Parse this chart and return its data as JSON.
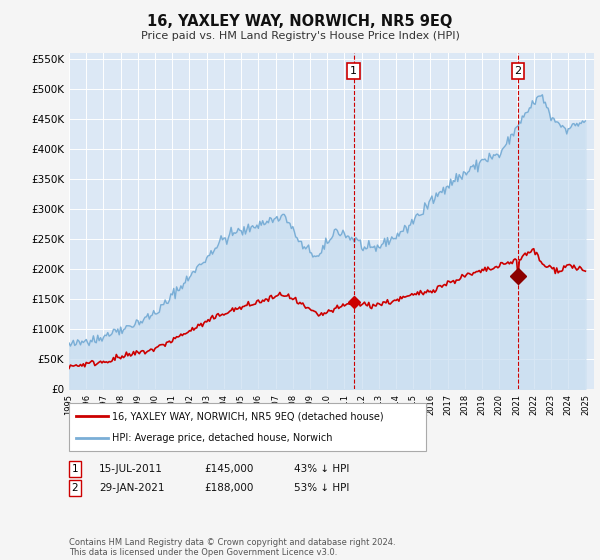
{
  "title": "16, YAXLEY WAY, NORWICH, NR5 9EQ",
  "subtitle": "Price paid vs. HM Land Registry's House Price Index (HPI)",
  "hpi_color": "#7aaed6",
  "hpi_fill_color": "#c8ddf0",
  "price_color": "#cc0000",
  "fig_bg_color": "#f5f5f5",
  "plot_bg_color": "#dce8f5",
  "ylim": [
    0,
    560000
  ],
  "yticks": [
    0,
    50000,
    100000,
    150000,
    200000,
    250000,
    300000,
    350000,
    400000,
    450000,
    500000,
    550000
  ],
  "xlim_left": 1995.0,
  "xlim_right": 2025.5,
  "annotation1": {
    "x_year": 2011.54,
    "price_y": 145000,
    "label": "1",
    "date": "15-JUL-2011",
    "price": "£145,000",
    "pct": "43% ↓ HPI"
  },
  "annotation2": {
    "x_year": 2021.08,
    "price_y": 188000,
    "label": "2",
    "date": "29-JAN-2021",
    "price": "£188,000",
    "pct": "53% ↓ HPI"
  },
  "legend_label1": "16, YAXLEY WAY, NORWICH, NR5 9EQ (detached house)",
  "legend_label2": "HPI: Average price, detached house, Norwich",
  "footnote": "Contains HM Land Registry data © Crown copyright and database right 2024.\nThis data is licensed under the Open Government Licence v3.0."
}
